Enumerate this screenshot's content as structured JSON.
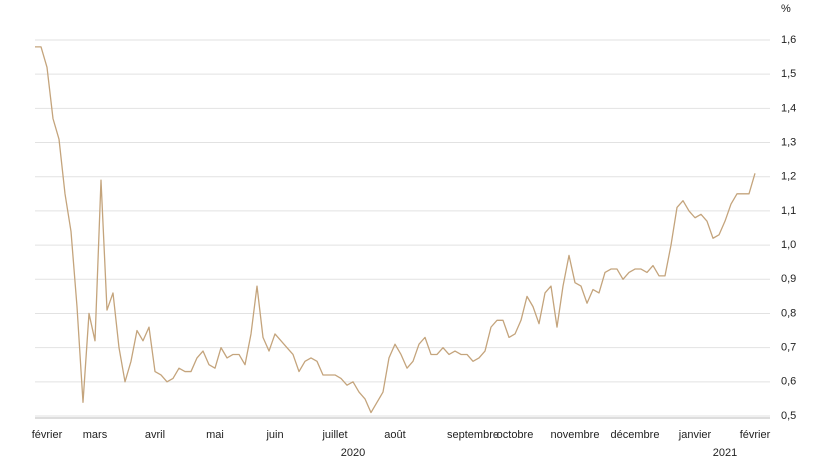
{
  "chart_data": {
    "type": "line",
    "y_label": "%",
    "color": "#c4a47c",
    "grid": true,
    "ylim": [
      0.5,
      1.6
    ],
    "yticks": [
      {
        "value": 0.5,
        "label": "0,5"
      },
      {
        "value": 0.6,
        "label": "0,6"
      },
      {
        "value": 0.7,
        "label": "0,7"
      },
      {
        "value": 0.8,
        "label": "0,8"
      },
      {
        "value": 0.9,
        "label": "0,9"
      },
      {
        "value": 1.0,
        "label": "1,0"
      },
      {
        "value": 1.1,
        "label": "1,1"
      },
      {
        "value": 1.2,
        "label": "1,2"
      },
      {
        "value": 1.3,
        "label": "1,3"
      },
      {
        "value": 1.4,
        "label": "1,4"
      },
      {
        "value": 1.5,
        "label": "1,5"
      },
      {
        "value": 1.6,
        "label": "1,6"
      }
    ],
    "x_group_labels": [
      "2020",
      "2021"
    ],
    "categories": [
      null,
      null,
      "février",
      null,
      null,
      null,
      null,
      null,
      null,
      null,
      "mars",
      null,
      null,
      null,
      null,
      null,
      null,
      null,
      null,
      null,
      "avril",
      null,
      null,
      null,
      null,
      null,
      null,
      null,
      null,
      null,
      "mai",
      null,
      null,
      null,
      null,
      null,
      null,
      null,
      null,
      null,
      "juin",
      null,
      null,
      null,
      null,
      null,
      null,
      null,
      null,
      null,
      "juillet",
      null,
      null,
      null,
      null,
      null,
      null,
      null,
      null,
      null,
      "août",
      null,
      null,
      null,
      null,
      null,
      null,
      null,
      null,
      null,
      null,
      null,
      null,
      "septembre",
      null,
      null,
      null,
      null,
      null,
      null,
      "octobre",
      null,
      null,
      null,
      null,
      null,
      null,
      null,
      null,
      null,
      "novembre",
      null,
      null,
      null,
      null,
      null,
      null,
      null,
      null,
      null,
      "décembre",
      null,
      null,
      null,
      null,
      null,
      null,
      null,
      null,
      null,
      "janvier",
      null,
      null,
      null,
      null,
      null,
      null,
      null,
      null,
      null,
      "février"
    ],
    "values": [
      1.58,
      1.58,
      1.52,
      1.37,
      1.31,
      1.15,
      1.04,
      0.82,
      0.54,
      0.8,
      0.72,
      1.19,
      0.81,
      0.86,
      0.7,
      0.6,
      0.66,
      0.75,
      0.72,
      0.76,
      0.63,
      0.62,
      0.6,
      0.61,
      0.64,
      0.63,
      0.63,
      0.67,
      0.69,
      0.65,
      0.64,
      0.7,
      0.67,
      0.68,
      0.68,
      0.65,
      0.74,
      0.88,
      0.73,
      0.69,
      0.74,
      0.72,
      0.7,
      0.68,
      0.63,
      0.66,
      0.67,
      0.66,
      0.62,
      0.62,
      0.62,
      0.61,
      0.59,
      0.6,
      0.57,
      0.55,
      0.51,
      0.54,
      0.57,
      0.67,
      0.71,
      0.68,
      0.64,
      0.66,
      0.71,
      0.73,
      0.68,
      0.68,
      0.7,
      0.68,
      0.69,
      0.68,
      0.68,
      0.66,
      0.67,
      0.69,
      0.76,
      0.78,
      0.78,
      0.73,
      0.74,
      0.78,
      0.85,
      0.82,
      0.77,
      0.86,
      0.88,
      0.76,
      0.88,
      0.97,
      0.89,
      0.88,
      0.83,
      0.87,
      0.86,
      0.92,
      0.93,
      0.93,
      0.9,
      0.92,
      0.93,
      0.93,
      0.92,
      0.94,
      0.91,
      0.91,
      1.0,
      1.11,
      1.13,
      1.1,
      1.08,
      1.09,
      1.07,
      1.02,
      1.03,
      1.07,
      1.12,
      1.15,
      1.15,
      1.15,
      1.21
    ]
  }
}
